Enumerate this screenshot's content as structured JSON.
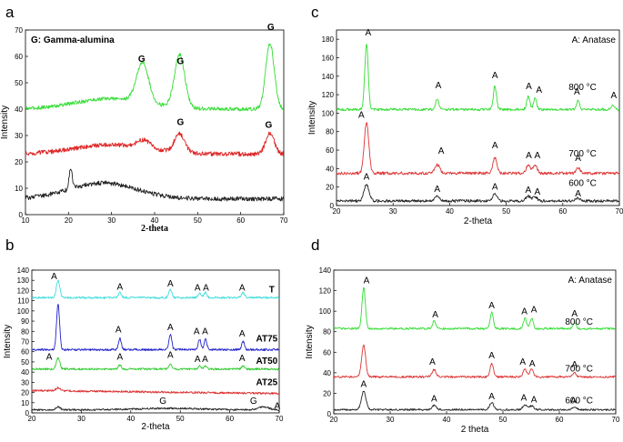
{
  "chart_data": [
    {
      "panel": "a",
      "type": "line",
      "legend": "G: Gamma-alumina",
      "xlabel": "2-theta",
      "ylabel": "Intensity",
      "xlim": [
        10,
        70
      ],
      "ylim": [
        0,
        70
      ],
      "xticks": [
        10,
        20,
        30,
        40,
        50,
        60,
        70
      ],
      "yticks": [
        0,
        10,
        20,
        30,
        40,
        50,
        60,
        70
      ],
      "series": [
        {
          "name": "green",
          "color": "#33dd33",
          "base": 40,
          "hump": {
            "center": 30,
            "width": 12,
            "height": 4
          },
          "peaks": [
            {
              "x": 37.2,
              "h": 15,
              "w": 1.4
            },
            {
              "x": 45.8,
              "h": 20,
              "w": 1.2
            },
            {
              "x": 66.8,
              "h": 25,
              "w": 1.0
            }
          ],
          "noise": 1.0
        },
        {
          "name": "red",
          "color": "#dd2222",
          "base": 23,
          "hump": {
            "center": 30,
            "width": 12,
            "height": 3.5
          },
          "peaks": [
            {
              "x": 37.5,
              "h": 3,
              "w": 1.5
            },
            {
              "x": 45.8,
              "h": 7,
              "w": 1.2
            },
            {
              "x": 66.8,
              "h": 8,
              "w": 1.0
            }
          ],
          "noise": 1.2
        },
        {
          "name": "black",
          "color": "#222222",
          "base": 6,
          "hump": {
            "center": 28,
            "width": 11,
            "height": 6
          },
          "peaks": [
            {
              "x": 20.5,
              "h": 8,
              "w": 0.35
            }
          ],
          "noise": 1.2
        }
      ],
      "annotations": [
        {
          "text": "G",
          "x": 37,
          "y": 58
        },
        {
          "text": "G",
          "x": 46,
          "y": 57
        },
        {
          "text": "G",
          "x": 67,
          "y": 70
        },
        {
          "text": "G",
          "x": 46,
          "y": 34
        },
        {
          "text": "G",
          "x": 66.5,
          "y": 33
        }
      ]
    },
    {
      "panel": "b",
      "type": "line",
      "xlabel": "2-theta",
      "ylabel": "Intensity",
      "xlim": [
        20,
        70
      ],
      "ylim": [
        0,
        140
      ],
      "xticks": [
        20,
        30,
        40,
        50,
        60,
        70
      ],
      "yticks": [
        0,
        10,
        20,
        30,
        40,
        50,
        60,
        70,
        80,
        90,
        100,
        110,
        120,
        130,
        140
      ],
      "series": [
        {
          "name": "T",
          "color": "#44dddd",
          "base": 113,
          "hump": null,
          "peaks": [
            {
              "x": 25.3,
              "h": 17,
              "w": 0.35
            },
            {
              "x": 37.8,
              "h": 5,
              "w": 0.3
            },
            {
              "x": 48.0,
              "h": 8,
              "w": 0.3
            },
            {
              "x": 53.9,
              "h": 5,
              "w": 0.3
            },
            {
              "x": 55.1,
              "h": 5,
              "w": 0.3
            },
            {
              "x": 62.7,
              "h": 5,
              "w": 0.3
            }
          ],
          "noise": 0.7
        },
        {
          "name": "AT75",
          "color": "#2222cc",
          "base": 62,
          "hump": null,
          "peaks": [
            {
              "x": 25.3,
              "h": 45,
              "w": 0.3
            },
            {
              "x": 37.8,
              "h": 11,
              "w": 0.28
            },
            {
              "x": 48.0,
              "h": 15,
              "w": 0.28
            },
            {
              "x": 53.9,
              "h": 10,
              "w": 0.28
            },
            {
              "x": 55.1,
              "h": 10,
              "w": 0.28
            },
            {
              "x": 62.7,
              "h": 8,
              "w": 0.28
            }
          ],
          "noise": 0.7
        },
        {
          "name": "AT50",
          "color": "#33cc33",
          "base": 43,
          "hump": null,
          "peaks": [
            {
              "x": 25.3,
              "h": 11,
              "w": 0.35
            },
            {
              "x": 37.8,
              "h": 4,
              "w": 0.3
            },
            {
              "x": 48.0,
              "h": 5,
              "w": 0.3
            },
            {
              "x": 53.9,
              "h": 3,
              "w": 0.3
            },
            {
              "x": 55.1,
              "h": 3,
              "w": 0.3
            },
            {
              "x": 62.7,
              "h": 3,
              "w": 0.3
            }
          ],
          "noise": 0.7
        },
        {
          "name": "AT25",
          "color": "#dd3333",
          "base": 22,
          "hump": null,
          "slope": -0.06,
          "peaks": [
            {
              "x": 25.3,
              "h": 3,
              "w": 0.4
            }
          ],
          "noise": 0.7
        },
        {
          "name": "",
          "color": "#222222",
          "base": 3,
          "hump": {
            "center": 48,
            "width": 9,
            "height": 1.5
          },
          "peaks": [
            {
              "x": 25.3,
              "h": 3,
              "w": 0.4
            },
            {
              "x": 66.8,
              "h": 3,
              "w": 1.0
            }
          ],
          "noise": 0.6
        }
      ],
      "series_labels": [
        {
          "text": "T",
          "x": 68.5,
          "y": 118
        },
        {
          "text": "AT75",
          "x": 67.5,
          "y": 70
        },
        {
          "text": "AT50",
          "x": 67.5,
          "y": 48
        },
        {
          "text": "AT25",
          "x": 67.5,
          "y": 27
        }
      ],
      "annotations": [
        {
          "text": "A",
          "x": 24.5,
          "y": 131
        },
        {
          "text": "A",
          "x": 37.8,
          "y": 121
        },
        {
          "text": "A",
          "x": 48,
          "y": 124
        },
        {
          "text": "A",
          "x": 53.5,
          "y": 120
        },
        {
          "text": "A",
          "x": 55.2,
          "y": 120
        },
        {
          "text": "A",
          "x": 62.5,
          "y": 120
        },
        {
          "text": "A",
          "x": 37.5,
          "y": 79
        },
        {
          "text": "A",
          "x": 48,
          "y": 81
        },
        {
          "text": "A",
          "x": 53.3,
          "y": 77
        },
        {
          "text": "A",
          "x": 55,
          "y": 77
        },
        {
          "text": "A",
          "x": 62.5,
          "y": 75
        },
        {
          "text": "A",
          "x": 23.5,
          "y": 52
        },
        {
          "text": "A",
          "x": 37.8,
          "y": 52
        },
        {
          "text": "A",
          "x": 48,
          "y": 54
        },
        {
          "text": "A",
          "x": 53.5,
          "y": 50
        },
        {
          "text": "A",
          "x": 55,
          "y": 50
        },
        {
          "text": "A",
          "x": 62.5,
          "y": 51
        },
        {
          "text": "G",
          "x": 46.5,
          "y": 9
        },
        {
          "text": "G",
          "x": 64.8,
          "y": 9
        },
        {
          "text": "A",
          "x": 69.6,
          "y": 4
        }
      ]
    },
    {
      "panel": "c",
      "type": "line",
      "legend": "A: Anatase",
      "xlabel": "2-theta",
      "ylabel": "Intensity",
      "xlim": [
        20,
        70
      ],
      "ylim": [
        0,
        190
      ],
      "xticks": [
        20,
        30,
        40,
        50,
        60,
        70
      ],
      "yticks": [
        0,
        20,
        40,
        60,
        80,
        100,
        120,
        140,
        160,
        180
      ],
      "series": [
        {
          "name": "800 °C",
          "color": "#33dd33",
          "base": 104,
          "hump": null,
          "peaks": [
            {
              "x": 25.3,
              "h": 71,
              "w": 0.3
            },
            {
              "x": 37.8,
              "h": 12,
              "w": 0.28
            },
            {
              "x": 48.0,
              "h": 25,
              "w": 0.28
            },
            {
              "x": 53.9,
              "h": 14,
              "w": 0.28
            },
            {
              "x": 55.1,
              "h": 12,
              "w": 0.28
            },
            {
              "x": 62.7,
              "h": 9,
              "w": 0.28
            },
            {
              "x": 68.8,
              "h": 5,
              "w": 0.28
            }
          ],
          "noise": 0.7
        },
        {
          "name": "700 °C",
          "color": "#dd3333",
          "base": 35,
          "hump": null,
          "peaks": [
            {
              "x": 25.3,
              "h": 55,
              "w": 0.4
            },
            {
              "x": 37.8,
              "h": 9,
              "w": 0.45
            },
            {
              "x": 48.0,
              "h": 17,
              "w": 0.35
            },
            {
              "x": 53.9,
              "h": 9,
              "w": 0.35
            },
            {
              "x": 55.1,
              "h": 9,
              "w": 0.35
            },
            {
              "x": 62.7,
              "h": 6,
              "w": 0.35
            }
          ],
          "noise": 0.8
        },
        {
          "name": "600 °C",
          "color": "#222222",
          "base": 5,
          "hump": null,
          "peaks": [
            {
              "x": 25.3,
              "h": 18,
              "w": 0.45
            },
            {
              "x": 37.8,
              "h": 5,
              "w": 0.45
            },
            {
              "x": 48.0,
              "h": 7,
              "w": 0.4
            },
            {
              "x": 53.9,
              "h": 5,
              "w": 0.4
            },
            {
              "x": 55.1,
              "h": 4,
              "w": 0.4
            },
            {
              "x": 62.7,
              "h": 3,
              "w": 0.4
            }
          ],
          "noise": 0.8
        }
      ],
      "series_labels": [
        {
          "text": "800 °C",
          "x": 63.5,
          "y": 125
        },
        {
          "text": "700 °C",
          "x": 63.5,
          "y": 53
        },
        {
          "text": "600 °C",
          "x": 63.5,
          "y": 21
        }
      ],
      "annotations": [
        {
          "text": "A",
          "x": 25.6,
          "y": 184
        },
        {
          "text": "A",
          "x": 38,
          "y": 127
        },
        {
          "text": "A",
          "x": 48,
          "y": 138
        },
        {
          "text": "A",
          "x": 54,
          "y": 126
        },
        {
          "text": "A",
          "x": 55.8,
          "y": 122
        },
        {
          "text": "A",
          "x": 62.5,
          "y": 120
        },
        {
          "text": "A",
          "x": 69,
          "y": 116
        },
        {
          "text": "A",
          "x": 24.4,
          "y": 95
        },
        {
          "text": "A",
          "x": 38.5,
          "y": 56
        },
        {
          "text": "A",
          "x": 48,
          "y": 62
        },
        {
          "text": "A",
          "x": 54,
          "y": 51
        },
        {
          "text": "A",
          "x": 55.5,
          "y": 51
        },
        {
          "text": "A",
          "x": 62.7,
          "y": 48
        },
        {
          "text": "A",
          "x": 25.3,
          "y": 28
        },
        {
          "text": "A",
          "x": 37.8,
          "y": 15
        },
        {
          "text": "A",
          "x": 48,
          "y": 17
        },
        {
          "text": "A",
          "x": 53.9,
          "y": 14
        },
        {
          "text": "A",
          "x": 55.5,
          "y": 12
        },
        {
          "text": "A",
          "x": 62.7,
          "y": 10
        }
      ]
    },
    {
      "panel": "d",
      "type": "line",
      "legend": "A: Anatase",
      "xlabel": "2 theta",
      "ylabel": "Intensity",
      "xlim": [
        20,
        70
      ],
      "ylim": [
        0,
        140
      ],
      "xticks": [
        20,
        30,
        40,
        50,
        60,
        70
      ],
      "yticks": [
        0,
        20,
        40,
        60,
        80,
        100,
        120,
        140
      ],
      "series": [
        {
          "name": "800 °C",
          "color": "#33dd33",
          "base": 83,
          "hump": null,
          "peaks": [
            {
              "x": 25.3,
              "h": 40,
              "w": 0.3
            },
            {
              "x": 37.8,
              "h": 8,
              "w": 0.28
            },
            {
              "x": 48.0,
              "h": 16,
              "w": 0.28
            },
            {
              "x": 53.9,
              "h": 10,
              "w": 0.28
            },
            {
              "x": 55.1,
              "h": 10,
              "w": 0.28
            },
            {
              "x": 62.7,
              "h": 6,
              "w": 0.28
            }
          ],
          "noise": 0.7
        },
        {
          "name": "700 °C",
          "color": "#dd3333",
          "base": 36,
          "hump": null,
          "peaks": [
            {
              "x": 25.3,
              "h": 31,
              "w": 0.35
            },
            {
              "x": 37.8,
              "h": 7,
              "w": 0.35
            },
            {
              "x": 48.0,
              "h": 13,
              "w": 0.3
            },
            {
              "x": 53.9,
              "h": 8,
              "w": 0.3
            },
            {
              "x": 55.1,
              "h": 8,
              "w": 0.3
            },
            {
              "x": 62.7,
              "h": 4,
              "w": 0.3
            }
          ],
          "noise": 0.7
        },
        {
          "name": "600 °C",
          "color": "#222222",
          "base": 4,
          "hump": null,
          "peaks": [
            {
              "x": 25.3,
              "h": 18,
              "w": 0.4
            },
            {
              "x": 37.8,
              "h": 4,
              "w": 0.4
            },
            {
              "x": 48.0,
              "h": 7,
              "w": 0.35
            },
            {
              "x": 53.9,
              "h": 5,
              "w": 0.35
            },
            {
              "x": 55.1,
              "h": 4,
              "w": 0.35
            },
            {
              "x": 62.7,
              "h": 3,
              "w": 0.35
            }
          ],
          "noise": 0.6
        }
      ],
      "series_labels": [
        {
          "text": "800 °C",
          "x": 63.5,
          "y": 87
        },
        {
          "text": "700 °C",
          "x": 63.5,
          "y": 41
        },
        {
          "text": "600 °C",
          "x": 63.5,
          "y": 10
        }
      ],
      "annotations": [
        {
          "text": "A",
          "x": 25.8,
          "y": 127
        },
        {
          "text": "A",
          "x": 38,
          "y": 94
        },
        {
          "text": "A",
          "x": 48,
          "y": 103
        },
        {
          "text": "A",
          "x": 53.8,
          "y": 97
        },
        {
          "text": "A",
          "x": 55.5,
          "y": 99
        },
        {
          "text": "A",
          "x": 62.7,
          "y": 95
        },
        {
          "text": "A",
          "x": 37.5,
          "y": 48
        },
        {
          "text": "A",
          "x": 48,
          "y": 54
        },
        {
          "text": "A",
          "x": 53.5,
          "y": 48
        },
        {
          "text": "A",
          "x": 55.2,
          "y": 46
        },
        {
          "text": "A",
          "x": 62.7,
          "y": 45
        },
        {
          "text": "A",
          "x": 25.3,
          "y": 26
        },
        {
          "text": "A",
          "x": 37.8,
          "y": 12
        },
        {
          "text": "A",
          "x": 48,
          "y": 14
        },
        {
          "text": "A",
          "x": 53.7,
          "y": 13
        },
        {
          "text": "A",
          "x": 55.5,
          "y": 11
        },
        {
          "text": "A",
          "x": 62.5,
          "y": 10
        }
      ]
    }
  ]
}
